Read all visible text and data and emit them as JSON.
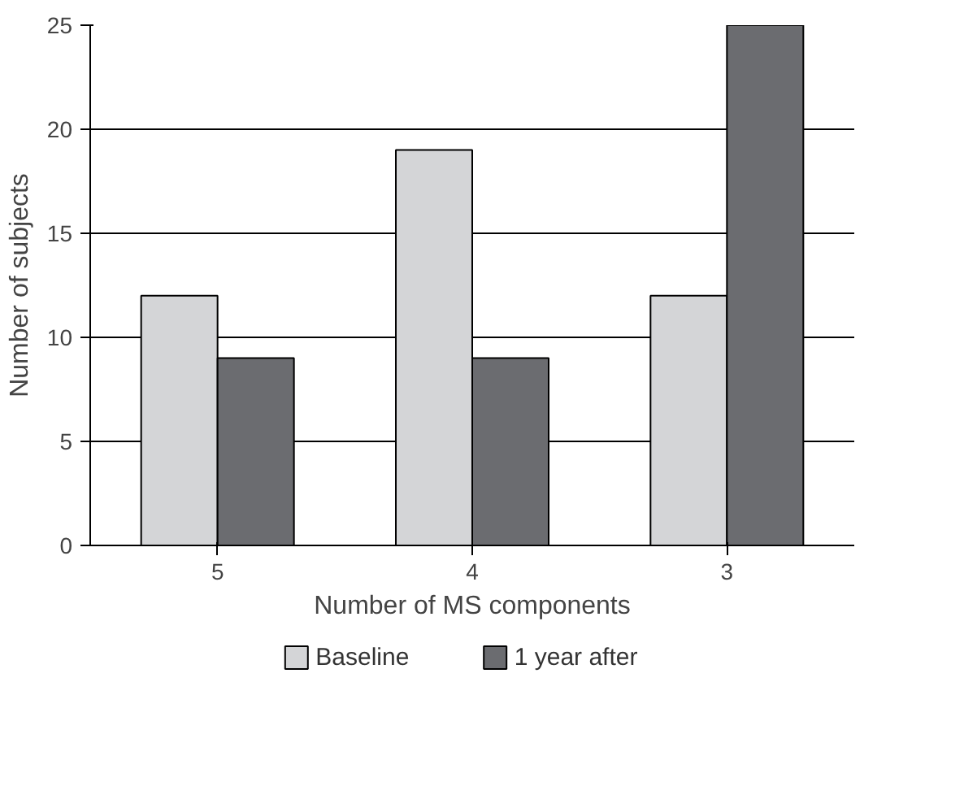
{
  "chart_data": {
    "type": "bar",
    "xlabel": "Number of MS components",
    "ylabel": "Number of subjects",
    "categories": [
      "5",
      "4",
      "3"
    ],
    "series": [
      {
        "name": "Baseline",
        "color": "#d4d5d7",
        "values": [
          12,
          19,
          12
        ]
      },
      {
        "name": "1 year after",
        "color": "#6b6c70",
        "values": [
          9,
          9,
          25
        ]
      }
    ],
    "ylim": [
      0,
      25
    ],
    "yticks": [
      0,
      5,
      10,
      15,
      20,
      25
    ],
    "grid": "y",
    "legend": "bottom"
  }
}
